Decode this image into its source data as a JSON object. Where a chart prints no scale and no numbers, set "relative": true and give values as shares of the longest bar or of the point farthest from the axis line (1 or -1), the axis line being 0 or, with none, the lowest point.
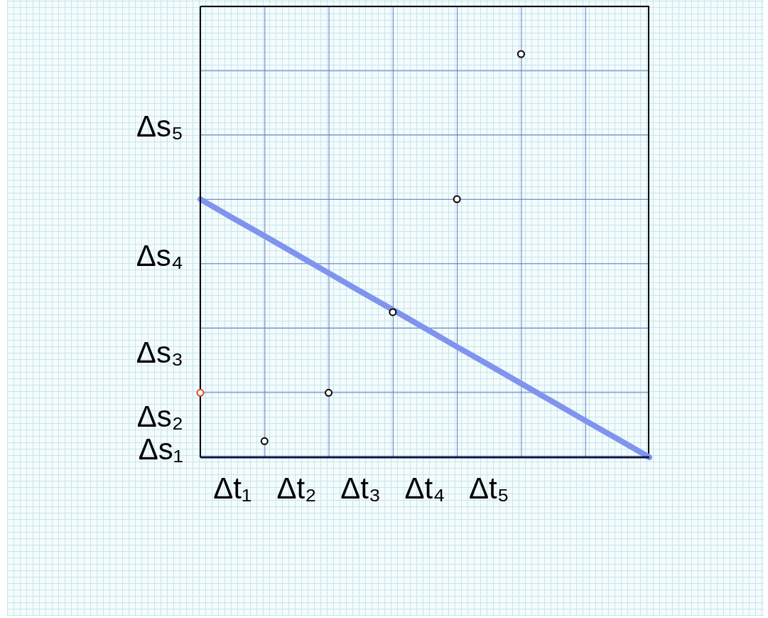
{
  "chart_data": {
    "type": "scatter",
    "relative": true,
    "marker": "circle",
    "categories": [
      null,
      "Δt₁",
      null,
      "Δt₂",
      null,
      "Δt₃",
      null,
      "Δt₄",
      null,
      "Δt₅",
      null,
      null,
      null,
      null,
      null
    ],
    "series": [
      {
        "type": "line",
        "color": "#7f94ee",
        "marker": "none",
        "values": [
          0.64,
          0.594,
          0.549,
          0.503,
          0.457,
          0.411,
          0.366,
          0.32,
          0.274,
          0.229,
          0.183,
          0.137,
          0.091,
          0.046,
          0
        ]
      },
      {
        "color": "#000000",
        "values": [
          null,
          null,
          0.04,
          null,
          0.16,
          null,
          0.36,
          null,
          0.64,
          null,
          1,
          null,
          null,
          null,
          null
        ]
      },
      {
        "color": "#e5412a",
        "values": [
          0.16,
          null,
          null,
          null,
          null,
          null,
          null,
          null,
          null,
          null,
          null,
          null,
          null,
          null,
          null
        ]
      }
    ],
    "annotations": [
      "Δs₁",
      "Δs₂",
      "Δs₃",
      "Δs₄",
      "Δs₅"
    ]
  }
}
